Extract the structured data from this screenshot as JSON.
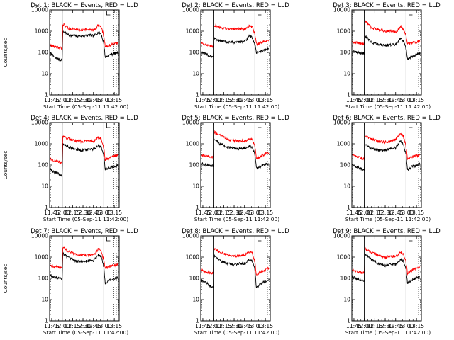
{
  "figure": {
    "background": "#ffffff",
    "axis_color": "#000000",
    "events_color": "#000000",
    "lld_color": "#ff0000"
  },
  "chart_data": [
    {
      "type": "line",
      "title": "Det 1: BLACK = Events, RED = LLD",
      "xlabel": "Start Time (05-Sep-11 11:42:00)",
      "ylabel": "Counts/sec",
      "x_range": [
        "11:42",
        "13:22"
      ],
      "x_ticks": [
        "11:45",
        "12:00",
        "12:15",
        "12:30",
        "12:45",
        "13:00",
        "13:15"
      ],
      "y_scale": "log",
      "ylim": [
        1,
        10000
      ],
      "y_ticks": [
        "1",
        "10",
        "100",
        "1000",
        "10000"
      ],
      "grid": false,
      "vertical_markers": [
        "12:00",
        "13:00"
      ],
      "x": [
        "11:42",
        "11:50",
        "11:58",
        "12:00",
        "12:01",
        "12:10",
        "12:20",
        "12:30",
        "12:40",
        "12:45",
        "12:48",
        "12:52",
        "12:56",
        "13:00",
        "13:02",
        "13:10",
        "13:20"
      ],
      "series": [
        {
          "name": "Events",
          "color": "#000000",
          "values": [
            100,
            55,
            45,
            45,
            1000,
            650,
            600,
            600,
            650,
            600,
            700,
            900,
            750,
            250,
            60,
            80,
            100
          ]
        },
        {
          "name": "LLD",
          "color": "#ff0000",
          "values": [
            230,
            180,
            160,
            160,
            2200,
            1300,
            1200,
            1150,
            1200,
            1100,
            1400,
            2000,
            1600,
            600,
            180,
            230,
            280
          ]
        }
      ]
    },
    {
      "type": "line",
      "title": "Det 2: BLACK = Events, RED = LLD",
      "xlabel": "Start Time (05-Sep-11 11:42:00)",
      "ylabel": "",
      "x_range": [
        "11:42",
        "13:22"
      ],
      "x_ticks": [
        "11:45",
        "12:00",
        "12:15",
        "12:30",
        "12:45",
        "13:00",
        "13:15"
      ],
      "y_scale": "log",
      "ylim": [
        1,
        10000
      ],
      "y_ticks": [
        "1",
        "10",
        "100",
        "1000",
        "10000"
      ],
      "grid": false,
      "vertical_markers": [
        "12:00",
        "13:00"
      ],
      "x": [
        "11:42",
        "11:50",
        "11:58",
        "12:00",
        "12:01",
        "12:10",
        "12:20",
        "12:30",
        "12:40",
        "12:45",
        "12:48",
        "12:52",
        "12:56",
        "13:00",
        "13:02",
        "13:10",
        "13:20"
      ],
      "series": [
        {
          "name": "Events",
          "color": "#000000",
          "values": [
            110,
            80,
            65,
            65,
            450,
            350,
            300,
            300,
            320,
            320,
            400,
            600,
            500,
            220,
            100,
            120,
            150
          ]
        },
        {
          "name": "LLD",
          "color": "#ff0000",
          "values": [
            300,
            220,
            190,
            190,
            1900,
            1500,
            1300,
            1250,
            1300,
            1250,
            1400,
            1800,
            1600,
            700,
            250,
            300,
            380
          ]
        }
      ]
    },
    {
      "type": "line",
      "title": "Det 3: BLACK = Events, RED = LLD",
      "xlabel": "Start Time (05-Sep-11 11:42:00)",
      "ylabel": "",
      "x_range": [
        "11:42",
        "13:22"
      ],
      "x_ticks": [
        "11:45",
        "12:00",
        "12:15",
        "12:30",
        "12:45",
        "13:00",
        "13:15"
      ],
      "y_scale": "log",
      "ylim": [
        1,
        10000
      ],
      "y_ticks": [
        "1",
        "10",
        "100",
        "1000",
        "10000"
      ],
      "grid": false,
      "vertical_markers": [
        "12:00",
        "13:00"
      ],
      "x": [
        "11:42",
        "11:50",
        "11:58",
        "12:00",
        "12:01",
        "12:10",
        "12:20",
        "12:30",
        "12:40",
        "12:45",
        "12:48",
        "12:52",
        "12:56",
        "13:00",
        "13:02",
        "13:10",
        "13:20"
      ],
      "series": [
        {
          "name": "Events",
          "color": "#000000",
          "values": [
            110,
            100,
            90,
            90,
            600,
            300,
            240,
            220,
            230,
            230,
            300,
            450,
            350,
            150,
            50,
            70,
            90
          ]
        },
        {
          "name": "LLD",
          "color": "#ff0000",
          "values": [
            320,
            280,
            260,
            260,
            3200,
            1500,
            1150,
            1000,
            1000,
            950,
            1150,
            1700,
            1300,
            600,
            250,
            300,
            330
          ]
        }
      ]
    },
    {
      "type": "line",
      "title": "Det 4: BLACK = Events, RED = LLD",
      "xlabel": "Start Time (05-Sep-11 11:42:00)",
      "ylabel": "Counts/sec",
      "x_range": [
        "11:42",
        "13:22"
      ],
      "x_ticks": [
        "11:45",
        "12:00",
        "12:15",
        "12:30",
        "12:45",
        "13:00",
        "13:15"
      ],
      "y_scale": "log",
      "ylim": [
        1,
        10000
      ],
      "y_ticks": [
        "1",
        "10",
        "100",
        "1000",
        "10000"
      ],
      "grid": false,
      "vertical_markers": [
        "12:00",
        "13:00"
      ],
      "x": [
        "11:42",
        "11:50",
        "11:58",
        "12:00",
        "12:01",
        "12:10",
        "12:20",
        "12:30",
        "12:40",
        "12:45",
        "12:48",
        "12:52",
        "12:56",
        "13:00",
        "13:02",
        "13:10",
        "13:20"
      ],
      "series": [
        {
          "name": "Events",
          "color": "#000000",
          "values": [
            60,
            45,
            35,
            35,
            1000,
            700,
            550,
            500,
            550,
            550,
            650,
            800,
            700,
            250,
            60,
            80,
            95
          ]
        },
        {
          "name": "LLD",
          "color": "#ff0000",
          "values": [
            200,
            160,
            130,
            130,
            2200,
            1700,
            1400,
            1300,
            1350,
            1300,
            1500,
            2000,
            1700,
            600,
            180,
            240,
            300
          ]
        }
      ]
    },
    {
      "type": "line",
      "title": "Det 5: BLACK = Events, RED = LLD",
      "xlabel": "Start Time (05-Sep-11 11:42:00)",
      "ylabel": "",
      "x_range": [
        "11:42",
        "13:22"
      ],
      "x_ticks": [
        "11:45",
        "12:00",
        "12:15",
        "12:30",
        "12:45",
        "13:00",
        "13:15"
      ],
      "y_scale": "log",
      "ylim": [
        1,
        10000
      ],
      "y_ticks": [
        "1",
        "10",
        "100",
        "1000",
        "10000"
      ],
      "grid": false,
      "vertical_markers": [
        "12:00",
        "13:00"
      ],
      "x": [
        "11:42",
        "11:50",
        "11:58",
        "12:00",
        "12:01",
        "12:10",
        "12:20",
        "12:30",
        "12:40",
        "12:45",
        "12:48",
        "12:52",
        "12:56",
        "13:00",
        "13:02",
        "13:10",
        "13:20"
      ],
      "series": [
        {
          "name": "Events",
          "color": "#000000",
          "values": [
            120,
            100,
            90,
            90,
            1600,
            1000,
            700,
            600,
            600,
            600,
            650,
            800,
            700,
            300,
            70,
            95,
            120
          ]
        },
        {
          "name": "LLD",
          "color": "#ff0000",
          "values": [
            300,
            260,
            240,
            240,
            3600,
            2500,
            1700,
            1400,
            1400,
            1400,
            1500,
            1800,
            1600,
            700,
            200,
            280,
            400
          ]
        }
      ]
    },
    {
      "type": "line",
      "title": "Det 6: BLACK = Events, RED = LLD",
      "xlabel": "Start Time (05-Sep-11 11:42:00)",
      "ylabel": "",
      "x_range": [
        "11:42",
        "13:22"
      ],
      "x_ticks": [
        "11:45",
        "12:00",
        "12:15",
        "12:30",
        "12:45",
        "13:00",
        "13:15"
      ],
      "y_scale": "log",
      "ylim": [
        1,
        10000
      ],
      "y_ticks": [
        "1",
        "10",
        "100",
        "1000",
        "10000"
      ],
      "grid": false,
      "vertical_markers": [
        "12:00",
        "13:00"
      ],
      "x": [
        "11:42",
        "11:50",
        "11:58",
        "12:00",
        "12:01",
        "12:10",
        "12:20",
        "12:30",
        "12:40",
        "12:45",
        "12:48",
        "12:52",
        "12:56",
        "13:00",
        "13:02",
        "13:10",
        "13:20"
      ],
      "series": [
        {
          "name": "Events",
          "color": "#000000",
          "values": [
            100,
            80,
            60,
            60,
            900,
            600,
            500,
            500,
            600,
            650,
            900,
            1300,
            1000,
            300,
            60,
            90,
            110
          ]
        },
        {
          "name": "LLD",
          "color": "#ff0000",
          "values": [
            300,
            240,
            200,
            200,
            2400,
            1700,
            1300,
            1200,
            1400,
            1600,
            2200,
            3000,
            2400,
            700,
            200,
            250,
            300
          ]
        }
      ]
    },
    {
      "type": "line",
      "title": "Det 7: BLACK = Events, RED = LLD",
      "xlabel": "Start Time (05-Sep-11 11:42:00)",
      "ylabel": "Counts/sec",
      "x_range": [
        "11:42",
        "13:22"
      ],
      "x_ticks": [
        "11:45",
        "12:00",
        "12:15",
        "12:30",
        "12:45",
        "13:00",
        "13:15"
      ],
      "y_scale": "log",
      "ylim": [
        1,
        10000
      ],
      "y_ticks": [
        "1",
        "10",
        "100",
        "1000",
        "10000"
      ],
      "grid": false,
      "vertical_markers": [
        "12:00",
        "13:00"
      ],
      "x": [
        "11:42",
        "11:50",
        "11:58",
        "12:00",
        "12:01",
        "12:10",
        "12:20",
        "12:30",
        "12:40",
        "12:45",
        "12:48",
        "12:52",
        "12:56",
        "13:00",
        "13:02",
        "13:10",
        "13:20"
      ],
      "series": [
        {
          "name": "Events",
          "color": "#000000",
          "values": [
            150,
            110,
            100,
            100,
            1500,
            900,
            650,
            600,
            700,
            700,
            900,
            1300,
            1100,
            350,
            60,
            90,
            110
          ]
        },
        {
          "name": "LLD",
          "color": "#ff0000",
          "values": [
            420,
            350,
            330,
            330,
            3000,
            1800,
            1300,
            1200,
            1300,
            1300,
            1600,
            2400,
            2000,
            700,
            300,
            380,
            450
          ]
        }
      ]
    },
    {
      "type": "line",
      "title": "Det 8: BLACK = Events, RED = LLD",
      "xlabel": "Start Time (05-Sep-11 11:42:00)",
      "ylabel": "",
      "x_range": [
        "11:42",
        "13:22"
      ],
      "x_ticks": [
        "11:45",
        "12:00",
        "12:15",
        "12:30",
        "12:45",
        "13:00",
        "13:15"
      ],
      "y_scale": "log",
      "ylim": [
        1,
        10000
      ],
      "y_ticks": [
        "1",
        "10",
        "100",
        "1000",
        "10000"
      ],
      "grid": false,
      "vertical_markers": [
        "12:00",
        "13:00"
      ],
      "x": [
        "11:42",
        "11:50",
        "11:58",
        "12:00",
        "12:01",
        "12:10",
        "12:20",
        "12:30",
        "12:40",
        "12:45",
        "12:48",
        "12:52",
        "12:56",
        "13:00",
        "13:02",
        "13:10",
        "13:20"
      ],
      "series": [
        {
          "name": "Events",
          "color": "#000000",
          "values": [
            90,
            60,
            40,
            40,
            1200,
            700,
            500,
            450,
            500,
            500,
            600,
            800,
            700,
            250,
            35,
            60,
            90
          ]
        },
        {
          "name": "LLD",
          "color": "#ff0000",
          "values": [
            260,
            200,
            180,
            180,
            2400,
            1700,
            1300,
            1100,
            1200,
            1200,
            1400,
            1800,
            1500,
            600,
            150,
            220,
            300
          ]
        }
      ]
    },
    {
      "type": "line",
      "title": "Det 9: BLACK = Events, RED = LLD",
      "xlabel": "Start Time (05-Sep-11 11:42:00)",
      "ylabel": "",
      "x_range": [
        "11:42",
        "13:22"
      ],
      "x_ticks": [
        "11:45",
        "12:00",
        "12:15",
        "12:30",
        "12:45",
        "13:00",
        "13:15"
      ],
      "y_scale": "log",
      "ylim": [
        1,
        10000
      ],
      "y_ticks": [
        "1",
        "10",
        "100",
        "1000",
        "10000"
      ],
      "grid": false,
      "vertical_markers": [
        "12:00",
        "13:00"
      ],
      "x": [
        "11:42",
        "11:50",
        "11:58",
        "12:00",
        "12:01",
        "12:10",
        "12:20",
        "12:30",
        "12:40",
        "12:45",
        "12:48",
        "12:52",
        "12:56",
        "13:00",
        "13:02",
        "13:10",
        "13:20"
      ],
      "series": [
        {
          "name": "Events",
          "color": "#000000",
          "values": [
            120,
            90,
            80,
            80,
            1300,
            800,
            500,
            400,
            450,
            450,
            550,
            800,
            650,
            250,
            60,
            90,
            120
          ]
        },
        {
          "name": "LLD",
          "color": "#ff0000",
          "values": [
            260,
            200,
            180,
            180,
            2500,
            1700,
            1200,
            1000,
            1100,
            1100,
            1300,
            1700,
            1500,
            550,
            180,
            250,
            350
          ]
        }
      ]
    }
  ]
}
